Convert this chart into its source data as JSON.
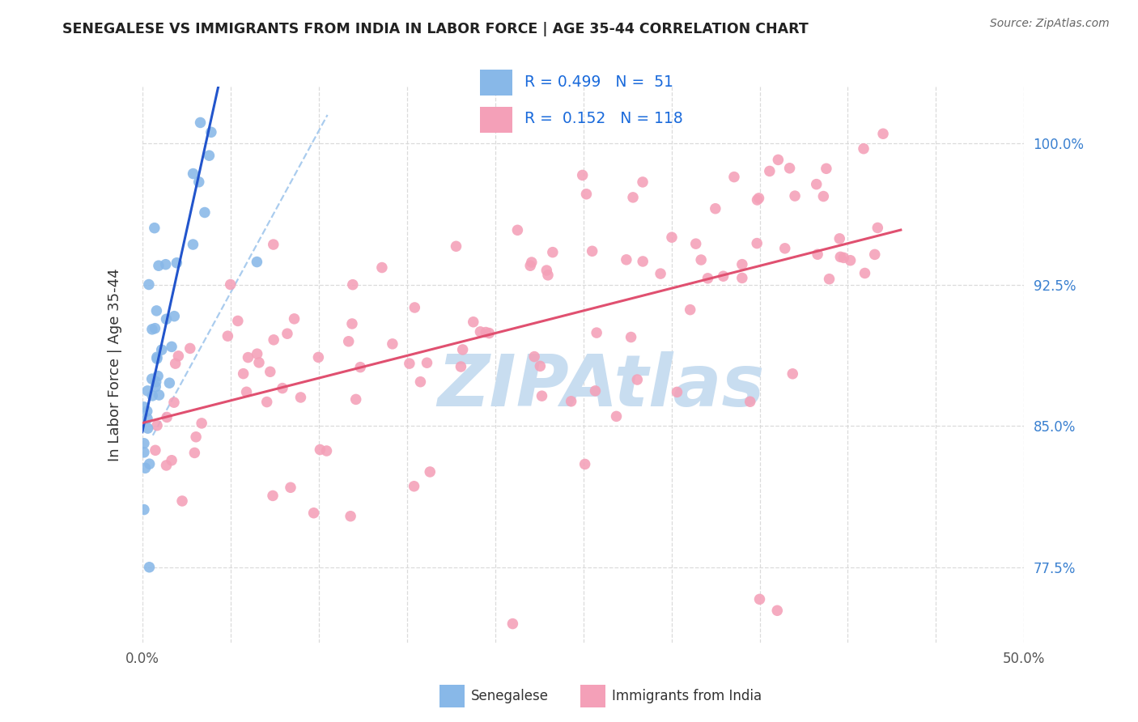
{
  "title": "SENEGALESE VS IMMIGRANTS FROM INDIA IN LABOR FORCE | AGE 35-44 CORRELATION CHART",
  "source": "Source: ZipAtlas.com",
  "ylabel": "In Labor Force | Age 35-44",
  "xlim": [
    0.0,
    0.5
  ],
  "ylim": [
    0.735,
    1.03
  ],
  "xtick_positions": [
    0.0,
    0.05,
    0.1,
    0.15,
    0.2,
    0.25,
    0.3,
    0.35,
    0.4,
    0.45,
    0.5
  ],
  "xtick_labels": [
    "0.0%",
    "",
    "",
    "",
    "",
    "",
    "",
    "",
    "",
    "",
    "50.0%"
  ],
  "ytick_positions": [
    0.775,
    0.85,
    0.925,
    1.0
  ],
  "ytick_labels": [
    "77.5%",
    "85.0%",
    "92.5%",
    "100.0%"
  ],
  "blue_color": "#88b8e8",
  "pink_color": "#f4a0b8",
  "trend_blue_color": "#2255cc",
  "trend_pink_color": "#e05070",
  "dashed_color": "#aaccee",
  "watermark_color": "#c8ddf0",
  "grid_color": "#d8d8d8",
  "legend_R_blue": "0.499",
  "legend_N_blue": " 51",
  "legend_R_pink": "0.152",
  "legend_N_pink": "118",
  "legend_label_blue": "Senegalese",
  "legend_label_pink": "Immigrants from India"
}
